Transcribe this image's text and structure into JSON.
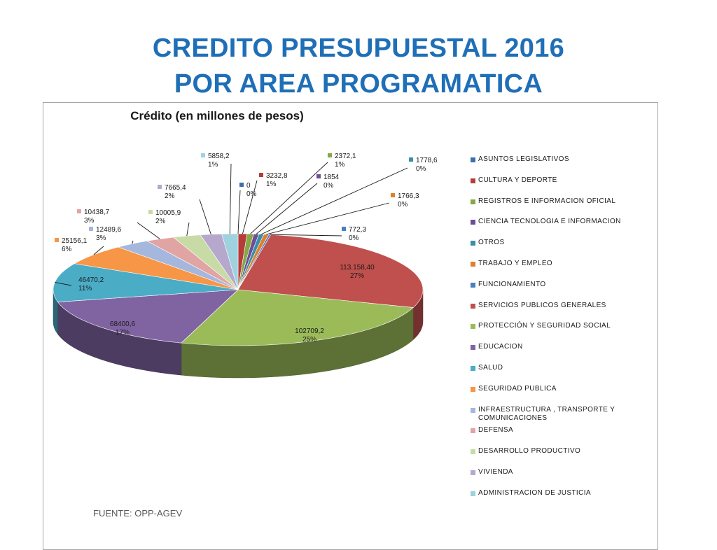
{
  "slide": {
    "title_line1": "CREDITO PRESUPUESTAL 2016",
    "title_line2": "POR AREA PROGRAMATICA",
    "source": "FUENTE: OPP-AGEV"
  },
  "chart_data": {
    "type": "pie",
    "title": "Crédito (en millones de pesos)",
    "legend_position": "right",
    "slices": [
      {
        "name": "ASUNTOS LEGISLATIVOS",
        "value": 0,
        "value_label": "0",
        "percent_label": "0%",
        "color": "#3a6faf"
      },
      {
        "name": "CULTURA Y DEPORTE",
        "value": 3232.8,
        "value_label": "3232,8",
        "percent_label": "1%",
        "color": "#b63c3a"
      },
      {
        "name": "REGISTROS E INFORMACION OFICIAL",
        "value": 2372.1,
        "value_label": "2372,1",
        "percent_label": "1%",
        "color": "#86a845"
      },
      {
        "name": "CIENCIA TECNOLOGIA E INFORMACION",
        "value": 1854,
        "value_label": "1854",
        "percent_label": "0%",
        "color": "#6e4d96"
      },
      {
        "name": "OTROS",
        "value": 1778.6,
        "value_label": "1778,6",
        "percent_label": "0%",
        "color": "#3a8fa6"
      },
      {
        "name": "TRABAJO Y EMPLEO",
        "value": 1766.3,
        "value_label": "1766,3",
        "percent_label": "0%",
        "color": "#e07f2c"
      },
      {
        "name": "FUNCIONAMIENTO",
        "value": 772.3,
        "value_label": "772,3",
        "percent_label": "0%",
        "color": "#4a7fc0"
      },
      {
        "name": "SERVICIOS PUBLICOS GENERALES",
        "value": 113158.4,
        "value_label": "113.158,40",
        "percent_label": "27%",
        "color": "#c0504d"
      },
      {
        "name": "PROTECCIÓN Y SEGURIDAD SOCIAL",
        "value": 102709.2,
        "value_label": "102709,2",
        "percent_label": "25%",
        "color": "#9bbb59"
      },
      {
        "name": "EDUCACION",
        "value": 68400.6,
        "value_label": "68400,6",
        "percent_label": "17%",
        "color": "#8064a2"
      },
      {
        "name": "SALUD",
        "value": 46470.2,
        "value_label": "46470,2",
        "percent_label": "11%",
        "color": "#4bacc6"
      },
      {
        "name": "SEGURIDAD PUBLICA",
        "value": 25156.1,
        "value_label": "25156,1",
        "percent_label": "6%",
        "color": "#f79646"
      },
      {
        "name": "INFRAESTRUCTURA , TRANSPORTE Y COMUNICACIONES",
        "value": 12489.6,
        "value_label": "12489,6",
        "percent_label": "3%",
        "color": "#a5b7dc"
      },
      {
        "name": "DEFENSA",
        "value": 10438.7,
        "value_label": "10438,7",
        "percent_label": "3%",
        "color": "#e0a4a3"
      },
      {
        "name": "DESARROLLO PRODUCTIVO",
        "value": 10005.9,
        "value_label": "10005,9",
        "percent_label": "2%",
        "color": "#c8dba6"
      },
      {
        "name": "VIVIENDA",
        "value": 7665.4,
        "value_label": "7665,4",
        "percent_label": "2%",
        "color": "#b6a8cc"
      },
      {
        "name": "ADMINISTRACION DE JUSTICIA",
        "value": 5858.2,
        "value_label": "5858,2",
        "percent_label": "1%",
        "color": "#9fd1df"
      }
    ]
  }
}
